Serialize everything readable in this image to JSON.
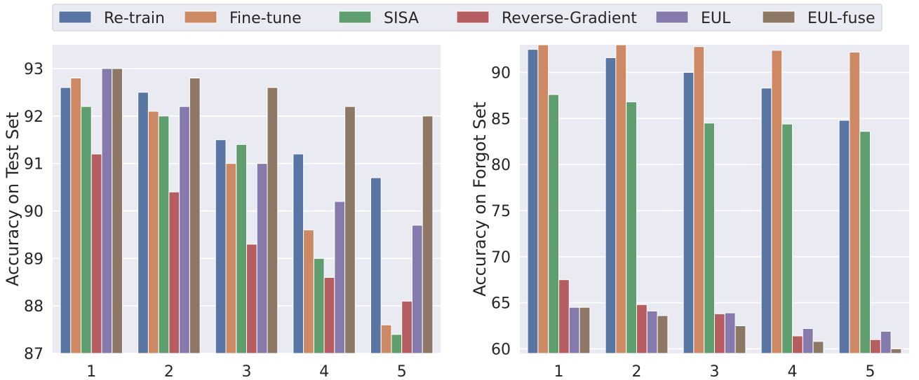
{
  "legend": {
    "entries": [
      {
        "name": "Re-train",
        "color": "#5875a4"
      },
      {
        "name": "Fine-tune",
        "color": "#cc8963"
      },
      {
        "name": "SISA",
        "color": "#5f9e6e"
      },
      {
        "name": "Reverse-Gradient",
        "color": "#b55d60"
      },
      {
        "name": "EUL",
        "color": "#857aab"
      },
      {
        "name": "EUL-fuse",
        "color": "#8d7866"
      }
    ]
  },
  "chart_data": [
    {
      "type": "bar",
      "title": "",
      "xlabel": "",
      "ylabel": "Accuracy on Test Set",
      "categories": [
        "1",
        "2",
        "3",
        "4",
        "5"
      ],
      "ylim": [
        87,
        93.5
      ],
      "yticks": [
        87,
        88,
        89,
        90,
        91,
        92,
        93
      ],
      "grid": true,
      "series": [
        {
          "name": "Re-train",
          "values": [
            92.6,
            92.5,
            91.5,
            91.2,
            90.7
          ]
        },
        {
          "name": "Fine-tune",
          "values": [
            92.8,
            92.1,
            91.0,
            89.6,
            87.6
          ]
        },
        {
          "name": "SISA",
          "values": [
            92.2,
            92.0,
            91.4,
            89.0,
            87.4
          ]
        },
        {
          "name": "Reverse-Gradient",
          "values": [
            91.2,
            90.4,
            89.3,
            88.6,
            88.1
          ]
        },
        {
          "name": "EUL",
          "values": [
            93.0,
            92.2,
            91.0,
            90.2,
            89.7
          ]
        },
        {
          "name": "EUL-fuse",
          "values": [
            93.0,
            92.8,
            92.6,
            92.2,
            92.0
          ]
        }
      ]
    },
    {
      "type": "bar",
      "title": "",
      "xlabel": "",
      "ylabel": "Accuracy on Forgot Set",
      "categories": [
        "1",
        "2",
        "3",
        "4",
        "5"
      ],
      "ylim": [
        59.5,
        93
      ],
      "yticks": [
        60,
        65,
        70,
        75,
        80,
        85,
        90
      ],
      "grid": true,
      "series": [
        {
          "name": "Re-train",
          "values": [
            92.5,
            91.6,
            90.0,
            88.3,
            84.8
          ]
        },
        {
          "name": "Fine-tune",
          "values": [
            93.0,
            93.0,
            92.8,
            92.4,
            92.2
          ]
        },
        {
          "name": "SISA",
          "values": [
            87.6,
            86.8,
            84.5,
            84.4,
            83.6
          ]
        },
        {
          "name": "Reverse-Gradient",
          "values": [
            67.5,
            64.8,
            63.8,
            61.4,
            61.0
          ]
        },
        {
          "name": "EUL",
          "values": [
            64.5,
            64.1,
            63.9,
            62.2,
            61.9
          ]
        },
        {
          "name": "EUL-fuse",
          "values": [
            64.5,
            63.6,
            62.5,
            60.8,
            60.0
          ]
        }
      ]
    }
  ]
}
